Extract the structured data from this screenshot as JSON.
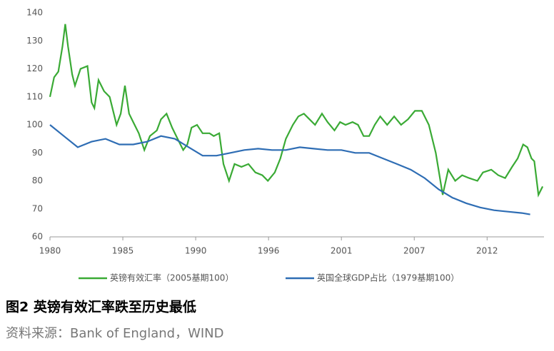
{
  "chart_data": {
    "type": "line",
    "xlim": [
      1980,
      2015.6
    ],
    "xticks": [
      {
        "value": 1980,
        "label": "1980"
      },
      {
        "value": 1985.25,
        "label": "1985"
      },
      {
        "value": 1990.5,
        "label": "1990"
      },
      {
        "value": 1995.75,
        "label": "1996"
      },
      {
        "value": 2001.0,
        "label": "2001"
      },
      {
        "value": 2006.25,
        "label": "2007"
      },
      {
        "value": 2011.5,
        "label": "2012"
      }
    ],
    "ylim": [
      60,
      140
    ],
    "yticks": [
      60,
      70,
      80,
      90,
      100,
      110,
      120,
      130,
      140
    ],
    "grid": false,
    "legend": "bottom",
    "series": [
      {
        "name": "英镑有效汇率（2005基期100）",
        "color": "#3aaa35",
        "x": [
          1980,
          1980.3,
          1980.6,
          1980.9,
          1981.1,
          1981.3,
          1981.6,
          1981.8,
          1982.2,
          1982.7,
          1983.0,
          1983.2,
          1983.5,
          1983.9,
          1984.3,
          1984.8,
          1985.1,
          1985.4,
          1985.7,
          1986.0,
          1986.4,
          1986.8,
          1987.2,
          1987.7,
          1988.0,
          1988.4,
          1988.8,
          1989.2,
          1989.6,
          1989.9,
          1990.2,
          1990.6,
          1991.0,
          1991.5,
          1991.8,
          1992.2,
          1992.5,
          1992.9,
          1993.3,
          1993.8,
          1994.3,
          1994.8,
          1995.3,
          1995.7,
          1996.2,
          1996.6,
          1997.0,
          1997.5,
          1997.9,
          1998.3,
          1998.7,
          1999.1,
          1999.6,
          2000.0,
          2000.5,
          2000.9,
          2001.3,
          2001.8,
          2002.2,
          2002.6,
          2003.0,
          2003.4,
          2003.8,
          2004.3,
          2004.8,
          2005.3,
          2005.8,
          2006.3,
          2006.8,
          2007.3,
          2007.8,
          2008.3,
          2008.7,
          2009.2,
          2009.7,
          2010.2,
          2010.8,
          2011.2,
          2011.8,
          2012.3,
          2012.8,
          2013.3,
          2013.7,
          2014.1,
          2014.4,
          2014.7,
          2014.9,
          2015.2,
          2015.5
        ],
        "values": [
          110,
          117,
          119,
          128,
          136,
          128,
          118,
          114,
          120,
          121,
          108,
          106,
          116,
          112,
          110,
          100,
          104,
          114,
          104,
          101,
          97,
          91,
          96,
          98,
          102,
          104,
          99,
          95,
          91,
          93,
          99,
          100,
          97,
          97,
          96,
          97,
          86,
          80,
          86,
          85,
          86,
          83,
          82,
          80,
          83,
          88,
          95,
          100,
          103,
          104,
          102,
          100,
          104,
          101,
          98,
          101,
          100,
          101,
          100,
          96,
          96,
          100,
          103,
          100,
          103,
          100,
          102,
          105,
          105,
          100,
          90,
          75,
          84,
          80,
          82,
          81,
          80,
          83,
          84,
          82,
          81,
          85,
          88,
          93,
          92,
          88,
          87,
          75,
          78
        ]
      },
      {
        "name": "英国全球GDP占比（1979基期100）",
        "color": "#2e6db4",
        "x": [
          1980,
          1981,
          1982,
          1983,
          1984,
          1985,
          1986,
          1987,
          1988,
          1989,
          1990,
          1991,
          1992,
          1993,
          1994,
          1995,
          1996,
          1997,
          1998,
          1999,
          2000,
          2001,
          2002,
          2003,
          2004,
          2005,
          2006,
          2007,
          2008,
          2009,
          2010,
          2011,
          2012,
          2013,
          2014,
          2014.6
        ],
        "values": [
          100,
          96,
          92,
          94,
          95,
          93,
          93,
          94,
          96,
          95,
          92,
          89,
          89,
          90,
          91,
          91.5,
          91,
          91,
          92,
          91.5,
          91,
          91,
          90,
          90,
          88,
          86,
          84,
          81,
          77,
          74,
          72,
          70.5,
          69.5,
          69,
          68.5,
          68
        ]
      }
    ],
    "figure_title": "图2  英镑有效汇率跌至历史最低",
    "source": "资料来源：Bank of England，WIND"
  }
}
